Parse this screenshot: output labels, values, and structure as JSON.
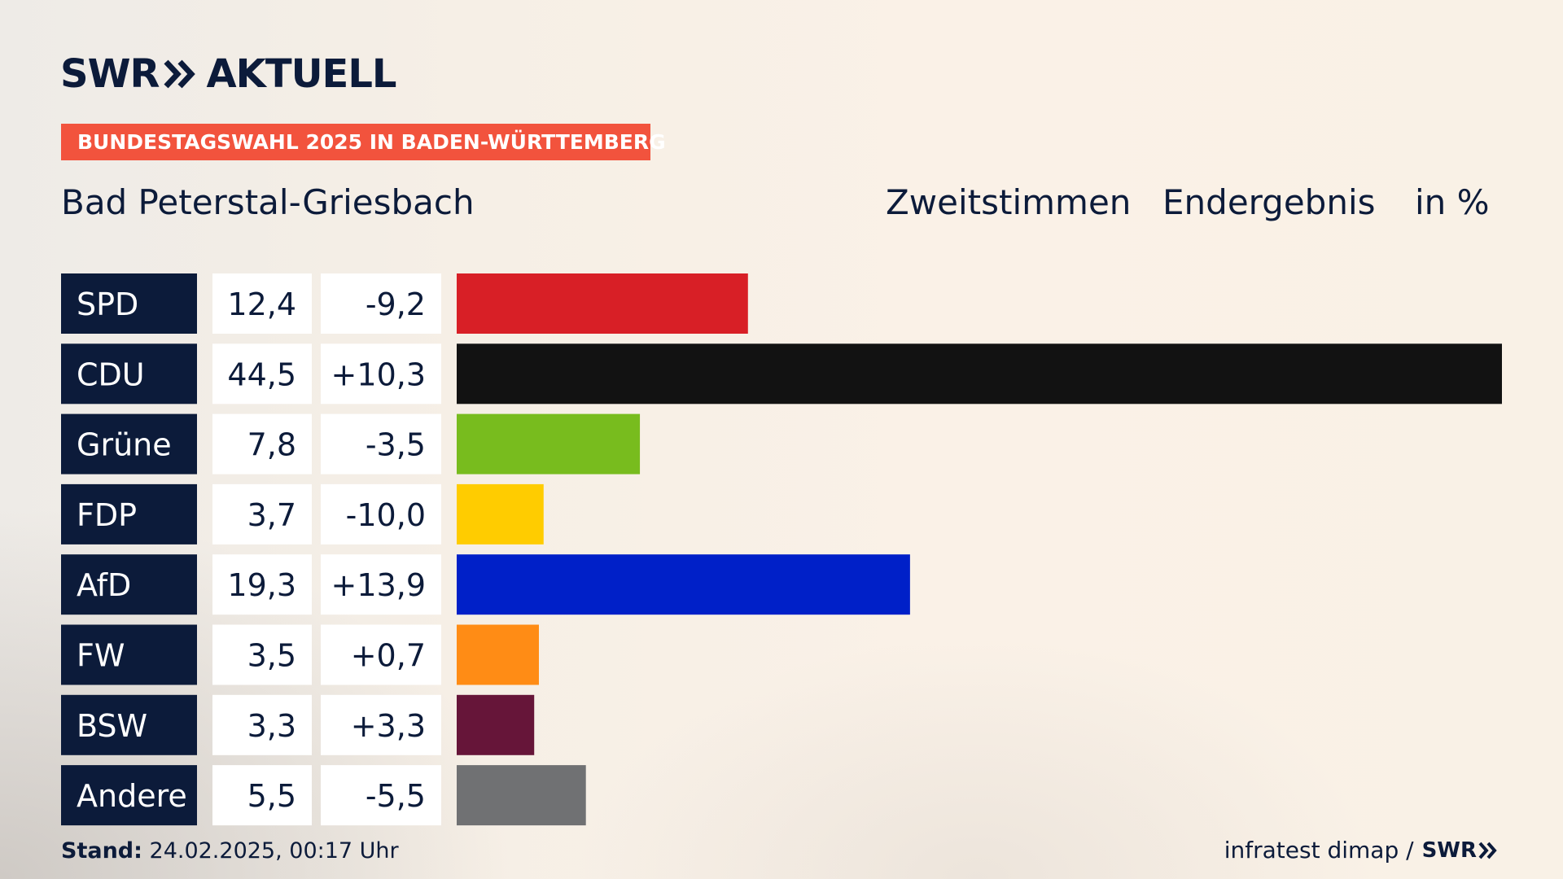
{
  "brand": {
    "logo_left": "SWR",
    "logo_right": "AKTUELL"
  },
  "banner": "BUNDESTAGSWAHL 2025 IN BADEN-WÜRTTEMBERG",
  "header": {
    "location": "Bad Peterstal-Griesbach",
    "vote_type": "Zweitstimmen",
    "result_type": "Endergebnis",
    "unit": "in %"
  },
  "chart_data": {
    "type": "bar",
    "orientation": "horizontal",
    "categories": [
      "SPD",
      "CDU",
      "Grüne",
      "FDP",
      "AfD",
      "FW",
      "BSW",
      "Andere"
    ],
    "values": [
      12.4,
      44.5,
      7.8,
      3.7,
      19.3,
      3.5,
      3.3,
      5.5
    ],
    "value_labels": [
      "12,4",
      "44,5",
      "7,8",
      "3,7",
      "19,3",
      "3,5",
      "3,3",
      "5,5"
    ],
    "changes": [
      "-9,2",
      "+10,3",
      "-3,5",
      "-10,0",
      "+13,9",
      "+0,7",
      "+3,3",
      "-5,5"
    ],
    "colors": [
      "#d81f26",
      "#121212",
      "#78bc1e",
      "#ffcc00",
      "#0020c8",
      "#ff8c15",
      "#661539",
      "#707173"
    ],
    "xlim": [
      0,
      44.5
    ],
    "grid": false,
    "legend": "none"
  },
  "footer": {
    "stand_label": "Stand:",
    "stand_value": "24.02.2025, 00:17 Uhr",
    "source": "infratest dimap /",
    "source_logo": "SWR"
  }
}
